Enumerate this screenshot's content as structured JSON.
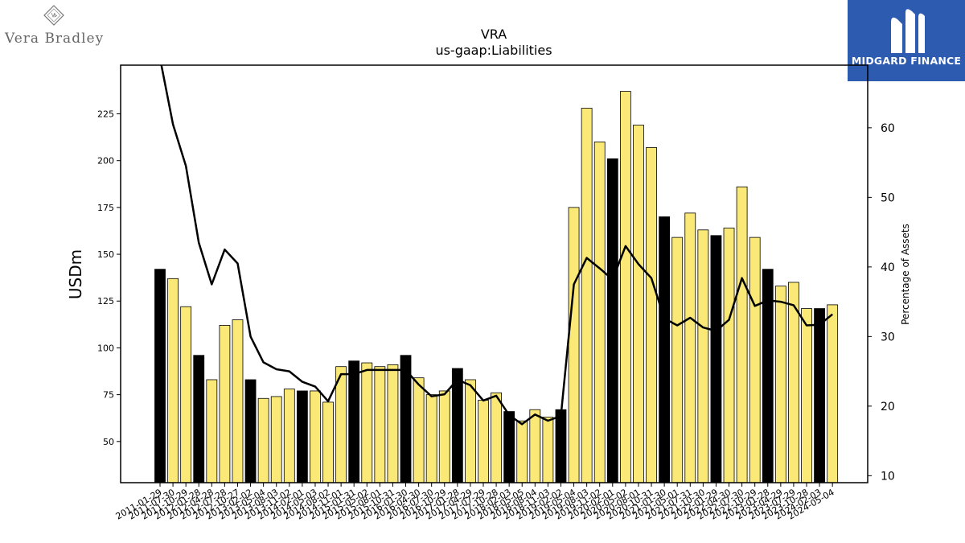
{
  "brand_left": {
    "name": "Vera Bradley",
    "emblem": "vb-diamond-monogram"
  },
  "brand_right": {
    "name": "MIDGARD FINANCE",
    "mark": "midgard-double-m-logo"
  },
  "chart_data": {
    "type": "bar",
    "title": "VRA",
    "subtitle": "us-gaap:Liabilities",
    "ylabel": "USDm",
    "y2label": "Percentage of Assets",
    "ylim": [
      28,
      251
    ],
    "y2lim": [
      9,
      69
    ],
    "yticks": [
      50,
      75,
      100,
      125,
      150,
      175,
      200,
      225
    ],
    "y2ticks": [
      10,
      20,
      30,
      40,
      50,
      60
    ],
    "categories": [
      "2011-01-29",
      "2011-07-30",
      "2011-10-29",
      "2012-01-28",
      "2012-04-28",
      "2012-07-28",
      "2012-10-27",
      "2013-02-02",
      "2013-05-04",
      "2013-08-03",
      "2013-11-02",
      "2014-02-01",
      "2014-05-03",
      "2014-08-02",
      "2014-11-01",
      "2015-01-31",
      "2015-05-02",
      "2015-08-01",
      "2015-10-31",
      "2016-01-30",
      "2016-04-30",
      "2016-07-30",
      "2016-10-29",
      "2017-01-28",
      "2017-04-29",
      "2017-07-29",
      "2017-10-28",
      "2018-02-03",
      "2018-05-05",
      "2018-08-04",
      "2018-11-03",
      "2019-02-02",
      "2019-05-04",
      "2019-08-03",
      "2019-11-02",
      "2020-02-01",
      "2020-05-02",
      "2020-08-01",
      "2020-10-31",
      "2021-01-30",
      "2021-05-01",
      "2021-07-31",
      "2021-10-30",
      "2022-01-29",
      "2022-04-30",
      "2022-07-30",
      "2022-10-29",
      "2023-01-28",
      "2023-04-29",
      "2023-07-29",
      "2023-10-28",
      "2024-02-03",
      "2024-05-04"
    ],
    "series": [
      {
        "kind": "bar",
        "axis": "left",
        "values": [
          142,
          137,
          122,
          96,
          83,
          112,
          115,
          83,
          73,
          74,
          78,
          77,
          77,
          71,
          90,
          93,
          92,
          90,
          91,
          96,
          84,
          75,
          77,
          89,
          83,
          72,
          76,
          66,
          61,
          67,
          63,
          67,
          175,
          228,
          210,
          201,
          237,
          219,
          207,
          170,
          159,
          172,
          163,
          160,
          164,
          186,
          159,
          142,
          133,
          135,
          121,
          121,
          123
        ],
        "year_end": [
          true,
          false,
          false,
          true,
          false,
          false,
          false,
          true,
          false,
          false,
          false,
          true,
          false,
          false,
          false,
          true,
          false,
          false,
          false,
          true,
          false,
          false,
          false,
          true,
          false,
          false,
          false,
          true,
          false,
          false,
          false,
          true,
          false,
          false,
          false,
          true,
          false,
          false,
          false,
          true,
          false,
          false,
          false,
          true,
          false,
          false,
          false,
          true,
          false,
          false,
          false,
          true,
          false
        ],
        "colors": {
          "year_end": "#000000",
          "quarter": "#fbe977"
        }
      },
      {
        "kind": "line",
        "axis": "right",
        "values": [
          70,
          60.5,
          54.5,
          43.5,
          37.5,
          42.5,
          40.5,
          30,
          26.3,
          25.3,
          25,
          23.5,
          22.8,
          20.7,
          24.6,
          24.6,
          25.2,
          25.2,
          25.2,
          25.2,
          23.1,
          21.4,
          21.7,
          23.8,
          23,
          20.8,
          21.5,
          18.7,
          17.4,
          18.8,
          17.9,
          18.6,
          37.5,
          41.3,
          39.8,
          38.2,
          43,
          40.4,
          38.4,
          32.6,
          31.6,
          32.7,
          31.3,
          30.8,
          32.4,
          38.4,
          34.4,
          35.2,
          35,
          34.5,
          31.6,
          31.7,
          33.2
        ],
        "color": "#000000"
      }
    ]
  }
}
